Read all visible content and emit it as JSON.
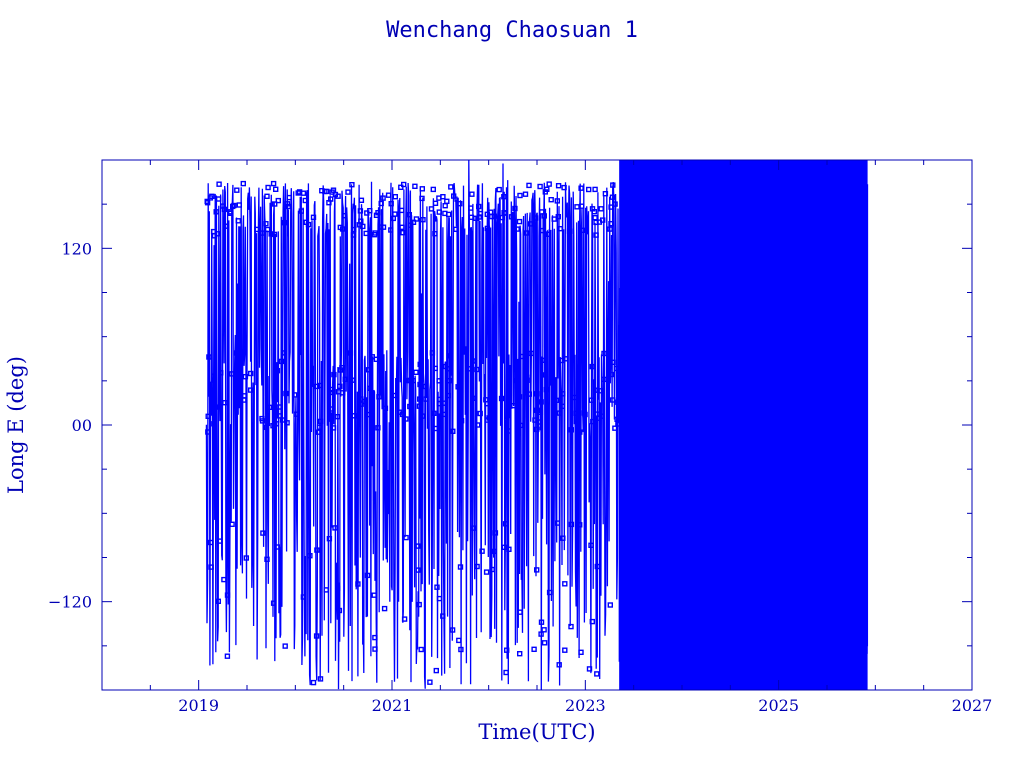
{
  "chart_data": {
    "type": "line",
    "title": "Wenchang Chaosuan 1",
    "xlabel": "Time(UTC)",
    "ylabel": "Long E (deg)",
    "xlim": [
      2018.0,
      2027.0
    ],
    "ylim": [
      -180,
      180
    ],
    "x_ticks": [
      2019,
      2021,
      2023,
      2025,
      2027
    ],
    "x_tick_labels": [
      "2019",
      "2021",
      "2023",
      "2025",
      "2027"
    ],
    "y_ticks": [
      -120,
      0,
      120
    ],
    "y_tick_labels": [
      "−120",
      "00",
      "120"
    ],
    "grid": false,
    "legend": "none",
    "colors": {
      "data": "#0000ff",
      "axes": "#0000b4",
      "text": "#0000b4",
      "background": "#ffffff"
    },
    "series": [
      {
        "description": "Sub-satellite longitude samples, wrapping between -180 and 180",
        "x_range": [
          2019.08,
          2025.92
        ],
        "dense_from": 2023.35,
        "y_range": [
          -180,
          180
        ],
        "clusters": [
          {
            "x_range": [
              2019.08,
              2023.35
            ],
            "y_approx": [
              128,
              165
            ]
          },
          {
            "x_range": [
              2019.08,
              2023.35
            ],
            "y_approx": [
              -5,
              50
            ]
          },
          {
            "x_range": [
              2019.08,
              2023.35
            ],
            "y_approx": [
              -180,
              -60
            ]
          }
        ]
      }
    ]
  }
}
